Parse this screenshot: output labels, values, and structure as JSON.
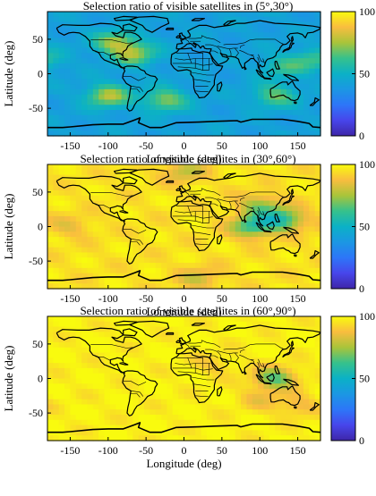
{
  "chart_data": [
    {
      "type": "heatmap",
      "title": "Selection ratio of visible satellites in (5°,30°)",
      "xlabel": "Longitude (deg)",
      "ylabel": "Latitude (deg)",
      "xlim": [
        -180,
        180
      ],
      "ylim": [
        -90,
        90
      ],
      "xticks": [
        "-150",
        "-100",
        "-50",
        "0",
        "50",
        "100",
        "150"
      ],
      "yticks": [
        "50",
        "0",
        "-50"
      ],
      "colorbar": {
        "range": [
          0,
          100
        ],
        "ticks": [
          "100",
          "50",
          "0"
        ]
      },
      "base_level": 42,
      "notable_values": [
        {
          "lon": -90,
          "lat": 45,
          "value": 75
        },
        {
          "lon": -65,
          "lat": 28,
          "value": 72
        },
        {
          "lon": -100,
          "lat": -32,
          "value": 78
        },
        {
          "lon": -25,
          "lat": -38,
          "value": 72
        },
        {
          "lon": 120,
          "lat": -32,
          "value": 68
        },
        {
          "lon": 130,
          "lat": 10,
          "value": 60
        },
        {
          "lon": 170,
          "lat": 20,
          "value": 62
        }
      ]
    },
    {
      "type": "heatmap",
      "title": "Selection ratio of visible satellites in (30°,60°)",
      "xlabel": "Longitude (deg)",
      "ylabel": "Latitude (deg)",
      "xlim": [
        -180,
        180
      ],
      "ylim": [
        -90,
        90
      ],
      "xticks": [
        "-150",
        "-100",
        "-50",
        "0",
        "50",
        "100",
        "150"
      ],
      "yticks": [
        "50",
        "0",
        "-50"
      ],
      "colorbar": {
        "range": [
          0,
          100
        ],
        "ticks": [
          "100",
          "50",
          "0"
        ]
      },
      "base_level": 95,
      "notable_values": [
        {
          "lon": 90,
          "lat": 0,
          "value": 60
        },
        {
          "lon": 130,
          "lat": 10,
          "value": 58
        },
        {
          "lon": 100,
          "lat": 30,
          "value": 72
        },
        {
          "lon": -150,
          "lat": 0,
          "value": 85
        },
        {
          "lon": 0,
          "lat": 80,
          "value": 78
        },
        {
          "lon": 20,
          "lat": -75,
          "value": 80
        }
      ]
    },
    {
      "type": "heatmap",
      "title": "Selection ratio of visible satellites in (60°,90°)",
      "xlabel": "Longitude (deg)",
      "ylabel": "Latitude (deg)",
      "xlim": [
        -180,
        180
      ],
      "ylim": [
        -90,
        90
      ],
      "xticks": [
        "-150",
        "-100",
        "-50",
        "0",
        "50",
        "100",
        "150"
      ],
      "yticks": [
        "50",
        "0",
        "-50"
      ],
      "colorbar": {
        "range": [
          0,
          100
        ],
        "ticks": [
          "100",
          "50",
          "0"
        ]
      },
      "base_level": 98,
      "notable_values": [
        {
          "lon": 120,
          "lat": 0,
          "value": 65
        },
        {
          "lon": 100,
          "lat": -30,
          "value": 88
        },
        {
          "lon": 150,
          "lat": -40,
          "value": 85
        },
        {
          "lon": 40,
          "lat": 20,
          "value": 90
        }
      ]
    }
  ]
}
